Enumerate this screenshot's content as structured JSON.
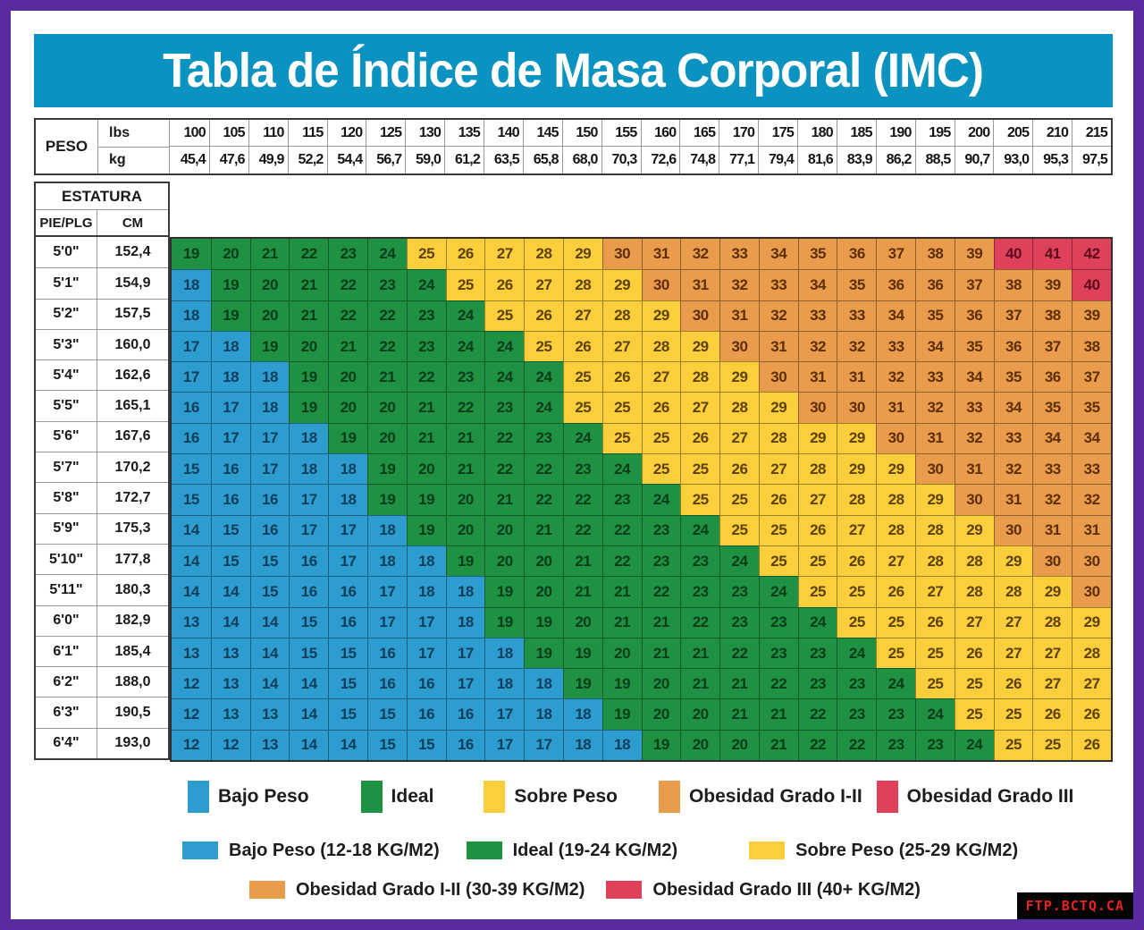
{
  "watermark": "FTP.BCTQ.CA",
  "colors": {
    "frame": "#5a2b9e",
    "title_bar": "#0a93c0",
    "title_text": "#ffffff",
    "watermark_bg": "#050505",
    "watermark_text": "#e82222"
  },
  "legend_bottom": [
    "Bajo Peso (12-18 KG/M2)",
    "Ideal (19-24 KG/M2)",
    "Sobre Peso (25-29 KG/M2)",
    "Obesidad Grado I-II (30-39 KG/M2)",
    "Obesidad Grado III (40+ KG/M2)"
  ],
  "chart_data": {
    "type": "heatmap",
    "title": "Tabla de Índice de Masa Corporal (IMC)",
    "col_header": {
      "group_label": "PESO",
      "unit_labels": [
        "lbs",
        "kg"
      ],
      "lbs": [
        "100",
        "105",
        "110",
        "115",
        "120",
        "125",
        "130",
        "135",
        "140",
        "145",
        "150",
        "155",
        "160",
        "165",
        "170",
        "175",
        "180",
        "185",
        "190",
        "195",
        "200",
        "205",
        "210",
        "215"
      ],
      "kg": [
        "45,4",
        "47,6",
        "49,9",
        "52,2",
        "54,4",
        "56,7",
        "59,0",
        "61,2",
        "63,5",
        "65,8",
        "68,0",
        "70,3",
        "72,6",
        "74,8",
        "77,1",
        "79,4",
        "81,6",
        "83,9",
        "86,2",
        "88,5",
        "90,7",
        "93,0",
        "95,3",
        "97,5"
      ]
    },
    "row_header": {
      "group_label": "ESTATURA",
      "unit_labels": [
        "PIE/PLG",
        "CM"
      ],
      "pie_plg": [
        "5'0\"",
        "5'1\"",
        "5'2\"",
        "5'3\"",
        "5'4\"",
        "5'5\"",
        "5'6\"",
        "5'7\"",
        "5'8\"",
        "5'9\"",
        "5'10\"",
        "5'11\"",
        "6'0\"",
        "6'1\"",
        "6'2\"",
        "6'3\"",
        "6'4\""
      ],
      "cm": [
        "152,4",
        "154,9",
        "157,5",
        "160,0",
        "162,6",
        "165,1",
        "167,6",
        "170,2",
        "172,7",
        "175,3",
        "177,8",
        "180,3",
        "182,9",
        "185,4",
        "188,0",
        "190,5",
        "193,0"
      ]
    },
    "values": [
      [
        19,
        20,
        21,
        22,
        23,
        24,
        25,
        26,
        27,
        28,
        29,
        30,
        31,
        32,
        33,
        34,
        35,
        36,
        37,
        38,
        39,
        40,
        41,
        42
      ],
      [
        18,
        19,
        20,
        21,
        22,
        23,
        24,
        25,
        26,
        27,
        28,
        29,
        30,
        31,
        32,
        33,
        34,
        35,
        36,
        36,
        37,
        38,
        39,
        40
      ],
      [
        18,
        19,
        20,
        21,
        22,
        22,
        23,
        24,
        25,
        26,
        27,
        28,
        29,
        30,
        31,
        32,
        33,
        33,
        34,
        35,
        36,
        37,
        38,
        39
      ],
      [
        17,
        18,
        19,
        20,
        21,
        22,
        23,
        24,
        24,
        25,
        26,
        27,
        28,
        29,
        30,
        31,
        32,
        32,
        33,
        34,
        35,
        36,
        37,
        38
      ],
      [
        17,
        18,
        18,
        19,
        20,
        21,
        22,
        23,
        24,
        24,
        25,
        26,
        27,
        28,
        29,
        30,
        31,
        31,
        32,
        33,
        34,
        35,
        36,
        37
      ],
      [
        16,
        17,
        18,
        19,
        20,
        20,
        21,
        22,
        23,
        24,
        25,
        25,
        26,
        27,
        28,
        29,
        30,
        30,
        31,
        32,
        33,
        34,
        35,
        35
      ],
      [
        16,
        17,
        17,
        18,
        19,
        20,
        21,
        21,
        22,
        23,
        24,
        25,
        25,
        26,
        27,
        28,
        29,
        29,
        30,
        31,
        32,
        33,
        34,
        34
      ],
      [
        15,
        16,
        17,
        18,
        18,
        19,
        20,
        21,
        22,
        22,
        23,
        24,
        25,
        25,
        26,
        27,
        28,
        29,
        29,
        30,
        31,
        32,
        33,
        33
      ],
      [
        15,
        16,
        16,
        17,
        18,
        19,
        19,
        20,
        21,
        22,
        22,
        23,
        24,
        25,
        25,
        26,
        27,
        28,
        28,
        29,
        30,
        31,
        32,
        32
      ],
      [
        14,
        15,
        16,
        17,
        17,
        18,
        19,
        20,
        20,
        21,
        22,
        22,
        23,
        24,
        25,
        25,
        26,
        27,
        28,
        28,
        29,
        30,
        31,
        31
      ],
      [
        14,
        15,
        15,
        16,
        17,
        18,
        18,
        19,
        20,
        20,
        21,
        22,
        23,
        23,
        24,
        25,
        25,
        26,
        27,
        28,
        28,
        29,
        30,
        30
      ],
      [
        14,
        14,
        15,
        16,
        16,
        17,
        18,
        18,
        19,
        20,
        21,
        21,
        22,
        23,
        23,
        24,
        25,
        25,
        26,
        27,
        28,
        28,
        29,
        30
      ],
      [
        13,
        14,
        14,
        15,
        16,
        17,
        17,
        18,
        19,
        19,
        20,
        21,
        21,
        22,
        23,
        23,
        24,
        25,
        25,
        26,
        27,
        27,
        28,
        29
      ],
      [
        13,
        13,
        14,
        15,
        15,
        16,
        17,
        17,
        18,
        19,
        19,
        20,
        21,
        21,
        22,
        23,
        23,
        24,
        25,
        25,
        26,
        27,
        27,
        28
      ],
      [
        12,
        13,
        14,
        14,
        15,
        16,
        16,
        17,
        18,
        18,
        19,
        19,
        20,
        21,
        21,
        22,
        23,
        23,
        24,
        25,
        25,
        26,
        27,
        27
      ],
      [
        12,
        13,
        13,
        14,
        15,
        15,
        16,
        16,
        17,
        18,
        18,
        19,
        20,
        20,
        21,
        21,
        22,
        23,
        23,
        24,
        25,
        25,
        26,
        26
      ],
      [
        12,
        12,
        13,
        14,
        14,
        15,
        15,
        16,
        17,
        17,
        18,
        18,
        19,
        20,
        20,
        21,
        22,
        22,
        23,
        23,
        24,
        25,
        25,
        26
      ]
    ],
    "categories": [
      {
        "label": "Bajo Peso",
        "range_label": "12-18 KG/M2",
        "min": 12,
        "max": 18,
        "fill": "#2d9cce",
        "num": "#0d3f5c"
      },
      {
        "label": "Ideal",
        "range_label": "19-24 KG/M2",
        "min": 19,
        "max": 24,
        "fill": "#1e9142",
        "num": "#073d18"
      },
      {
        "label": "Sobre Peso",
        "range_label": "25-29 KG/M2",
        "min": 25,
        "max": 29,
        "fill": "#fbce3c",
        "num": "#5e4204"
      },
      {
        "label": "Obesidad Grado I-II",
        "range_label": "30-39 KG/M2",
        "min": 30,
        "max": 39,
        "fill": "#e99c4b",
        "num": "#5e2f06"
      },
      {
        "label": "Obesidad Grado III",
        "range_label": "40+ KG/M2",
        "min": 40,
        "max": 99,
        "fill": "#e0415a",
        "num": "#5c0d1c"
      }
    ],
    "legend_position": "bottom",
    "grid": true
  }
}
